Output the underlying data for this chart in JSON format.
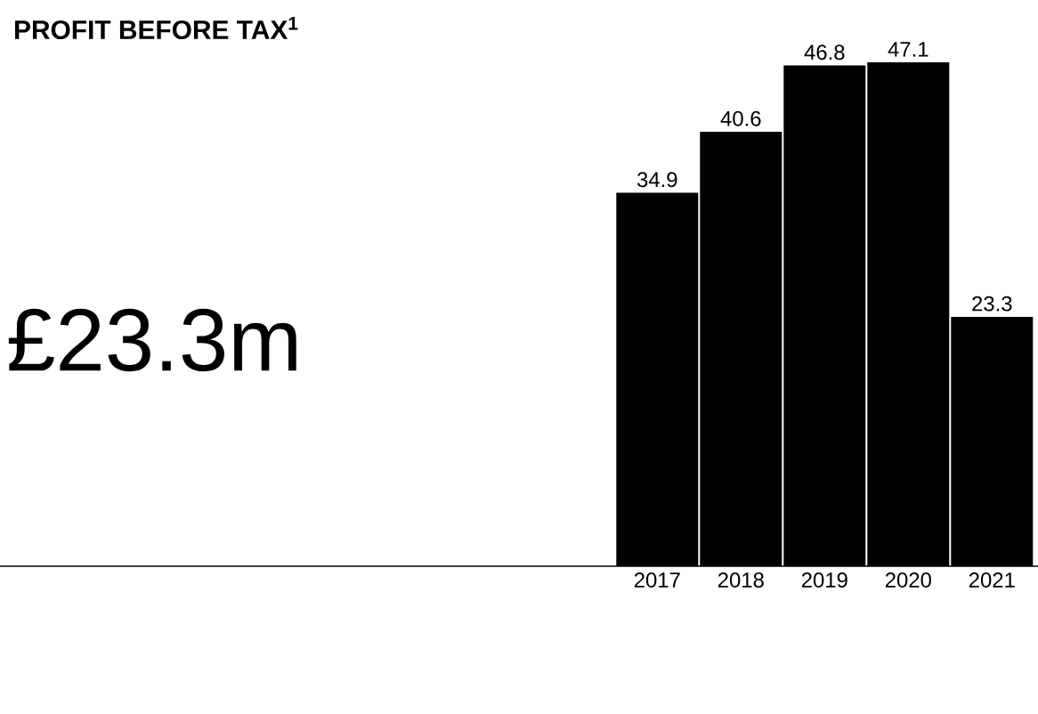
{
  "chart_data": {
    "type": "bar",
    "title": "PROFIT BEFORE TAX$^{1}$",
    "categories": [
      "2017",
      "2018",
      "2019",
      "2020",
      "2021"
    ],
    "values": [
      34.9,
      40.6,
      46.8,
      47.1,
      23.3
    ],
    "color": "#000000",
    "data_labels": true,
    "tick_labels": "x",
    "annotations": [
      "£23.3m"
    ]
  }
}
